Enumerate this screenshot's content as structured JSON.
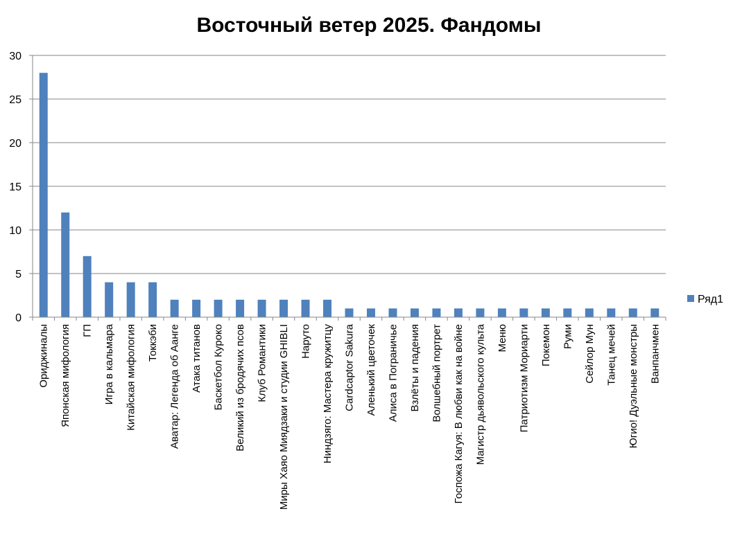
{
  "chart_data": {
    "type": "bar",
    "title": "Восточный ветер 2025. Фандомы",
    "xlabel": "",
    "ylabel": "",
    "ylim": [
      0,
      30
    ],
    "yticks": [
      "0",
      "5",
      "10",
      "15",
      "20",
      "25",
      "30"
    ],
    "grid": true,
    "legend_position": "right",
    "bar_color": "#4F81BD",
    "categories": [
      "Ориджиналы",
      "Японская мифология",
      "ГП",
      "Игра в кальмара",
      "Китайская мифология",
      "Токкэби",
      "Аватар: Легенда об Аанге",
      "Атака титанов",
      "Баскетбол Куроко",
      "Великий из бродячих псов",
      "Клуб Романтики",
      "Миры Хаяо Миядзаки и студии GHIBLI",
      "Наруто",
      "Ниндзяго: Мастера кружитцу",
      "Cardcaptor Sakura",
      "Аленький цветочек",
      "Алиса в Пограничье",
      "Взлёты и падения",
      "Волшебный портрет",
      "Госпожа Кагуя: В любви как на войне",
      "Магистр дьявольского культа",
      "Меню",
      "Патриотизм Мориарти",
      "Покемон",
      "Руми",
      "Сейлор Мун",
      "Танец мечей",
      "Югио! Дуэльные монстры",
      "Ванпанчмен"
    ],
    "series": [
      {
        "name": "Ряд1",
        "values": [
          28,
          12,
          7,
          4,
          4,
          4,
          2,
          2,
          2,
          2,
          2,
          2,
          2,
          2,
          1,
          1,
          1,
          1,
          1,
          1,
          1,
          1,
          1,
          1,
          1,
          1,
          1,
          1,
          1
        ]
      }
    ]
  }
}
